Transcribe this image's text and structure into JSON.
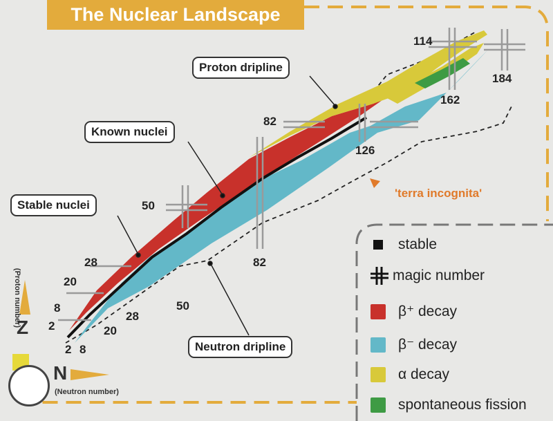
{
  "title": "The Nuclear Landscape",
  "callouts": {
    "proton_dripline": "Proton dripline",
    "known_nuclei": "Known nuclei",
    "stable_nuclei": "Stable nuclei",
    "neutron_dripline": "Neutron dripline"
  },
  "region_label": "'terra incognita'",
  "proton_magic_numbers": [
    "2",
    "8",
    "20",
    "28",
    "50",
    "82",
    "114"
  ],
  "neutron_magic_numbers": [
    "2",
    "8",
    "20",
    "28",
    "50",
    "82",
    "126",
    "162",
    "184"
  ],
  "axes": {
    "z_letter": "Z",
    "z_caption": "(Proton number)",
    "n_letter": "N",
    "n_caption": "(Neutron number)"
  },
  "legend": {
    "stable": "stable",
    "magic": "magic number",
    "beta_plus": "β⁺ decay",
    "beta_minus": "β⁻ decay",
    "alpha": "α decay",
    "fission": "spontaneous fission"
  },
  "colors": {
    "title_bg": "#e3ab3c",
    "frame_dash": "#e3ab3c",
    "legend_dash": "#777777",
    "beta_plus": "#c8312b",
    "beta_minus": "#63b8c8",
    "alpha": "#d8c93a",
    "fission": "#3e9b44",
    "stable": "#111111",
    "terra": "#e07a2a"
  }
}
